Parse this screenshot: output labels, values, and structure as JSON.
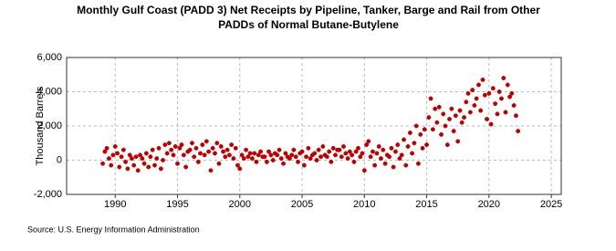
{
  "chart_data": {
    "type": "scatter",
    "title": [
      "Monthly Gulf Coast (PADD 3) Net Receipts by Pipeline, Tanker, Barge and Rail from Other",
      "PADDs of Normal Butane-Butylene"
    ],
    "y_label": "Thousand Barrels",
    "source": "Source: U.S. Energy Information Administration",
    "xlim": [
      1986.1,
      2025.8
    ],
    "xticks": [
      1990,
      1995,
      2000,
      2005,
      2010,
      2015,
      2020,
      2025
    ],
    "ylim": [
      -2000,
      6000
    ],
    "yticks": [
      {
        "value": -2000,
        "label": "-2,000"
      },
      0,
      {
        "value": 2000,
        "label": "2,000"
      },
      {
        "value": 4000,
        "label": "4,000"
      },
      {
        "value": 6000,
        "label": "6,000"
      }
    ],
    "grid": true,
    "color": "#c00000",
    "x": [
      1989,
      1989.17,
      1989.33,
      1989.5,
      1989.67,
      1989.83,
      1990,
      1990.17,
      1990.33,
      1990.5,
      1990.67,
      1990.83,
      1991,
      1991.17,
      1991.33,
      1991.5,
      1991.67,
      1991.83,
      1992,
      1992.17,
      1992.33,
      1992.5,
      1992.67,
      1992.83,
      1993,
      1993.17,
      1993.33,
      1993.5,
      1993.67,
      1993.83,
      1994,
      1994.17,
      1994.33,
      1994.5,
      1994.67,
      1994.83,
      1995,
      1995.17,
      1995.33,
      1995.5,
      1995.67,
      1995.83,
      1996,
      1996.17,
      1996.33,
      1996.5,
      1996.67,
      1996.83,
      1997,
      1997.17,
      1997.33,
      1997.5,
      1997.67,
      1997.83,
      1998,
      1998.17,
      1998.33,
      1998.5,
      1998.67,
      1998.83,
      1999,
      1999.17,
      1999.33,
      1999.5,
      1999.67,
      1999.83,
      2000,
      2000.17,
      2000.33,
      2000.5,
      2000.67,
      2000.83,
      2001,
      2001.17,
      2001.33,
      2001.5,
      2001.67,
      2001.83,
      2002,
      2002.17,
      2002.33,
      2002.5,
      2002.67,
      2002.83,
      2003,
      2003.17,
      2003.33,
      2003.5,
      2003.67,
      2003.83,
      2004,
      2004.17,
      2004.33,
      2004.5,
      2004.67,
      2004.83,
      2005,
      2005.17,
      2005.33,
      2005.5,
      2005.67,
      2005.83,
      2006,
      2006.17,
      2006.33,
      2006.5,
      2006.67,
      2006.83,
      2007,
      2007.17,
      2007.33,
      2007.5,
      2007.67,
      2007.83,
      2008,
      2008.17,
      2008.33,
      2008.5,
      2008.67,
      2008.83,
      2009,
      2009.17,
      2009.33,
      2009.5,
      2009.67,
      2009.83,
      2010,
      2010.17,
      2010.33,
      2010.5,
      2010.67,
      2010.83,
      2011,
      2011.17,
      2011.33,
      2011.5,
      2011.67,
      2011.83,
      2012,
      2012.17,
      2012.33,
      2012.5,
      2012.67,
      2012.83,
      2013,
      2013.17,
      2013.33,
      2013.5,
      2013.67,
      2013.83,
      2014,
      2014.17,
      2014.33,
      2014.5,
      2014.67,
      2014.83,
      2015,
      2015.17,
      2015.33,
      2015.5,
      2015.67,
      2015.83,
      2016,
      2016.17,
      2016.33,
      2016.5,
      2016.67,
      2016.83,
      2017,
      2017.17,
      2017.33,
      2017.5,
      2017.67,
      2017.83,
      2018,
      2018.17,
      2018.33,
      2018.5,
      2018.67,
      2018.83,
      2019,
      2019.17,
      2019.33,
      2019.5,
      2019.67,
      2019.83,
      2020,
      2020.17,
      2020.33,
      2020.5,
      2020.67,
      2020.83,
      2021,
      2021.17,
      2021.33,
      2021.5,
      2021.67,
      2021.83,
      2022,
      2022.17,
      2022.33
    ],
    "values": [
      -200,
      500,
      700,
      100,
      -300,
      300,
      800,
      400,
      -400,
      200,
      600,
      -100,
      -500,
      300,
      100,
      -300,
      200,
      -600,
      300,
      100,
      -200,
      400,
      -400,
      200,
      600,
      -300,
      100,
      700,
      -500,
      0,
      900,
      400,
      1000,
      600,
      300,
      800,
      -200,
      700,
      900,
      300,
      -400,
      500,
      600,
      1000,
      200,
      700,
      -100,
      400,
      900,
      300,
      1100,
      500,
      -600,
      700,
      400,
      1000,
      -200,
      800,
      500,
      200,
      600,
      300,
      900,
      100,
      700,
      -300,
      -500,
      300,
      100,
      600,
      200,
      400,
      100,
      400,
      -100,
      300,
      500,
      200,
      200,
      -100,
      500,
      300,
      0,
      400,
      300,
      600,
      100,
      -200,
      400,
      200,
      100,
      300,
      600,
      200,
      -100,
      400,
      500,
      -300,
      200,
      700,
      100,
      300,
      400,
      0,
      600,
      200,
      800,
      300,
      200,
      500,
      -100,
      700,
      300,
      600,
      600,
      200,
      800,
      400,
      100,
      500,
      300,
      -100,
      500,
      700,
      200,
      400,
      -600,
      900,
      1100,
      200,
      500,
      -300,
      400,
      800,
      100,
      600,
      -200,
      300,
      200,
      700,
      -400,
      500,
      900,
      100,
      300,
      1200,
      -300,
      800,
      1600,
      400,
      1000,
      2000,
      -200,
      1500,
      700,
      1800,
      900,
      2500,
      3600,
      1800,
      3000,
      2200,
      3100,
      1500,
      2700,
      2000,
      900,
      2400,
      3000,
      1700,
      2600,
      1100,
      2900,
      2200,
      2500,
      3400,
      3900,
      2800,
      4100,
      3200,
      3600,
      4400,
      2900,
      4700,
      3800,
      2400,
      3900,
      2100,
      4200,
      3300,
      2700,
      4000,
      3600,
      4800,
      2800,
      4400,
      3700,
      3900,
      3200,
      2600,
      1700
    ]
  }
}
